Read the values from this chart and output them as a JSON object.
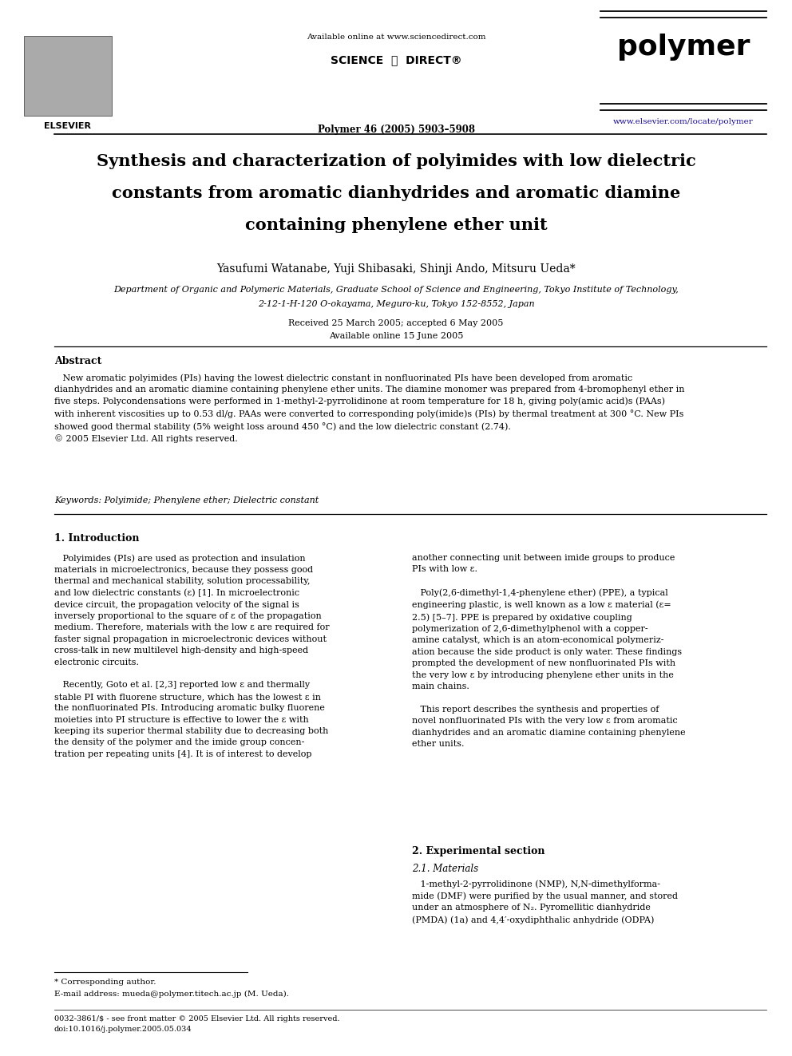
{
  "page_width": 9.92,
  "page_height": 13.23,
  "bg": "#ffffff",
  "ml": 0.068,
  "mr": 0.968,
  "header_available": "Available online at www.sciencedirect.com",
  "header_sd": "SCIENCE  ⓓ  DIRECT®",
  "header_journal_ref": "Polymer 46 (2005) 5903–5908",
  "header_journal_name": "polymer",
  "header_website": "www.elsevier.com/locate/polymer",
  "header_elsevier": "ELSEVIER",
  "title_line1": "Synthesis and characterization of polyimides with low dielectric",
  "title_line2": "constants from aromatic dianhydrides and aromatic diamine",
  "title_line3": "containing phenylene ether unit",
  "authors": "Yasufumi Watanabe, Yuji Shibasaki, Shinji Ando, Mitsuru Ueda*",
  "affil1": "Department of Organic and Polymeric Materials, Graduate School of Science and Engineering, Tokyo Institute of Technology,",
  "affil2": "2-12-1-H-120 O-okayama, Meguro-ku, Tokyo 152-8552, Japan",
  "received": "Received 25 March 2005; accepted 6 May 2005",
  "available_online": "Available online 15 June 2005",
  "abstract_heading": "Abstract",
  "abstract_indent": "   New aromatic polyimides (PIs) having the lowest dielectric constant in nonfluorinated PIs have been developed from aromatic\ndianhydrides and an aromatic diamine containing phenylene ether units. The diamine monomer was prepared from 4-bromophenyl ether in\nfive steps. Polycondensations were performed in 1-methyl-2-pyrrolidinone at room temperature for 18 h, giving poly(amic acid)s (PAAs)\nwith inherent viscosities up to 0.53 dl/g. PAAs were converted to corresponding poly(imide)s (PIs) by thermal treatment at 300 °C. New PIs\nshowed good thermal stability (5% weight loss around 450 °C) and the low dielectric constant (2.74).\n© 2005 Elsevier Ltd. All rights reserved.",
  "keywords": "Keywords: Polyimide; Phenylene ether; Dielectric constant",
  "s1_title": "1. Introduction",
  "s1_col1": "   Polyimides (PIs) are used as protection and insulation\nmaterials in microelectronics, because they possess good\nthermal and mechanical stability, solution processability,\nand low dielectric constants (ε) [1]. In microelectronic\ndevice circuit, the propagation velocity of the signal is\ninversely proportional to the square of ε of the propagation\nmedium. Therefore, materials with the low ε are required for\nfaster signal propagation in microelectronic devices without\ncross-talk in new multilevel high-density and high-speed\nelectronic circuits.\n\n   Recently, Goto et al. [2,3] reported low ε and thermally\nstable PI with fluorene structure, which has the lowest ε in\nthe nonfluorinated PIs. Introducing aromatic bulky fluorene\nmoieties into PI structure is effective to lower the ε with\nkeeping its superior thermal stability due to decreasing both\nthe density of the polymer and the imide group concen-\ntration per repeating units [4]. It is of interest to develop",
  "s1_col2": "another connecting unit between imide groups to produce\nPIs with low ε.\n\n   Poly(2,6-dimethyl-1,4-phenylene ether) (PPE), a typical\nengineering plastic, is well known as a low ε material (ε=\n2.5) [5–7]. PPE is prepared by oxidative coupling\npolymerization of 2,6-dimethylphenol with a copper-\namine catalyst, which is an atom-economical polymeriz-\nation because the side product is only water. These findings\nprompted the development of new nonfluorinated PIs with\nthe very low ε by introducing phenylene ether units in the\nmain chains.\n\n   This report describes the synthesis and properties of\nnovel nonfluorinated PIs with the very low ε from aromatic\ndianhydrides and an aromatic diamine containing phenylene\nether units.",
  "s2_title": "2. Experimental section",
  "s2_sub": "2.1. Materials",
  "s2_text": "   1-methyl-2-pyrrolidinone (NMP), N,N-dimethylforma-\nmide (DMF) were purified by the usual manner, and stored\nunder an atmosphere of N₂. Pyromellitic dianhydride\n(PMDA) (1a) and 4,4′-oxydiphthalic anhydride (ODPA)",
  "fn_star": "* Corresponding author.",
  "fn_email": "E-mail address: mueda@polymer.titech.ac.jp (M. Ueda).",
  "fn_issn": "0032-3861/$ - see front matter © 2005 Elsevier Ltd. All rights reserved.",
  "fn_doi": "doi:10.1016/j.polymer.2005.05.034"
}
